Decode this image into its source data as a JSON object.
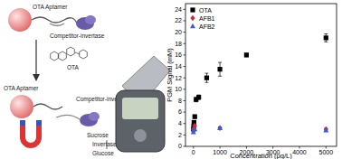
{
  "diagram": {
    "labels": [
      "OTA Aptamer",
      "Competitor-invertase",
      "OTA",
      "OTA Aptamer",
      "Competitor-invertase",
      "Sucrose",
      "Invertase",
      "Glucose"
    ]
  },
  "chart_data": {
    "type": "scatter",
    "x_label": "Concentration (μg/L)",
    "y_label": "PGM Signal (mM)",
    "xlim": [
      -300,
      5400
    ],
    "xticks": [
      0,
      1000,
      2000,
      3000,
      4000,
      5000
    ],
    "ylim": [
      0,
      25
    ],
    "yticks": [
      0,
      2,
      4,
      6,
      8,
      10,
      12,
      14,
      16,
      18,
      20,
      22,
      24
    ],
    "legend": "top-left",
    "grid": false,
    "series": [
      {
        "name": "OTA",
        "color": "#000000",
        "marker": "square",
        "x": [
          0,
          10,
          20,
          50,
          100,
          200,
          500,
          1000,
          2000,
          5000
        ],
        "values": [
          3.0,
          3.5,
          4.2,
          5.2,
          8.2,
          8.6,
          12.0,
          13.5,
          16.0,
          19.0
        ],
        "errors": [
          0.2,
          0.2,
          0.3,
          0.3,
          0.4,
          0.4,
          0.8,
          1.2,
          0.3,
          0.7
        ]
      },
      {
        "name": "AFB1",
        "color": "#d62728",
        "marker": "diamond",
        "x": [
          0,
          50,
          1000,
          5000
        ],
        "values": [
          3.0,
          3.6,
          3.2,
          3.0
        ],
        "errors": [
          0.2,
          0.2,
          0.2,
          0.2
        ]
      },
      {
        "name": "AFB2",
        "color": "#3b5bd6",
        "marker": "triangle",
        "x": [
          0,
          50,
          1000,
          5000
        ],
        "values": [
          2.5,
          3.0,
          3.2,
          2.8
        ],
        "errors": [
          0.2,
          0.2,
          0.2,
          0.2
        ]
      }
    ]
  }
}
